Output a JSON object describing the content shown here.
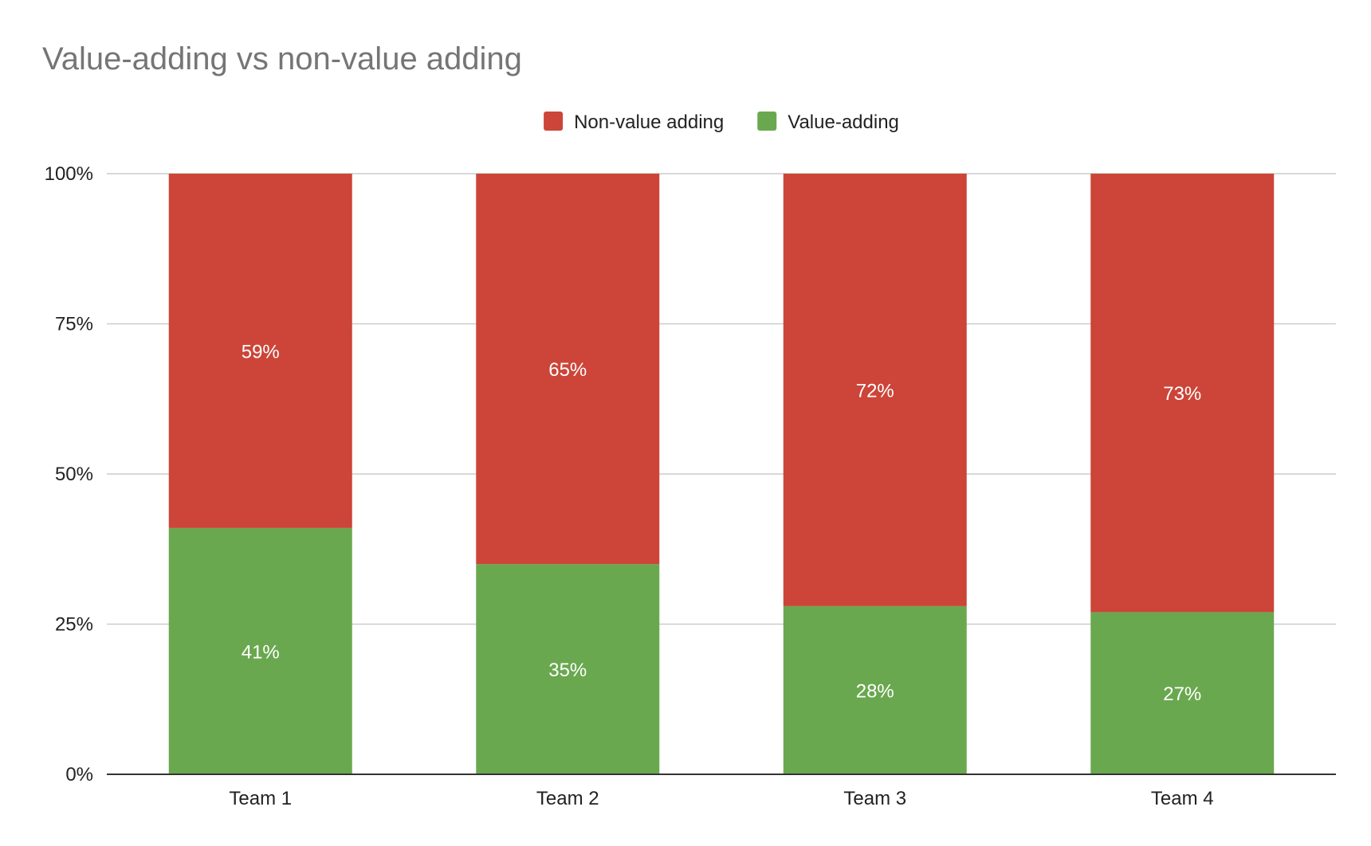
{
  "chart_data": {
    "type": "bar",
    "stacked": true,
    "title": "Value-adding vs non-value adding",
    "categories": [
      "Team 1",
      "Team 2",
      "Team 3",
      "Team 4"
    ],
    "series": [
      {
        "name": "Value-adding",
        "values": [
          41,
          35,
          28,
          27
        ],
        "labels": [
          "41%",
          "35%",
          "28%",
          "27%"
        ],
        "color": "#6aa84f"
      },
      {
        "name": "Non-value adding",
        "values": [
          59,
          65,
          72,
          73
        ],
        "labels": [
          "59%",
          "65%",
          "72%",
          "73%"
        ],
        "color": "#cc4538"
      }
    ],
    "legend_order": [
      "Non-value adding",
      "Value-adding"
    ],
    "legend_position": "top-center",
    "ylim": [
      0,
      100
    ],
    "yticks": [
      0,
      25,
      50,
      75,
      100
    ],
    "ytick_labels": [
      "0%",
      "25%",
      "50%",
      "75%",
      "100%"
    ],
    "grid": true,
    "xlabel": "",
    "ylabel": ""
  }
}
